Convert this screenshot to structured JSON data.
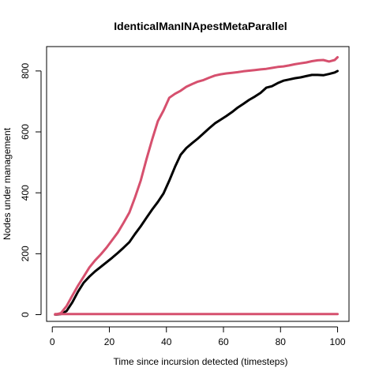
{
  "chart_data": {
    "type": "line",
    "title": "IdenticalManINApestMetaParallel",
    "xlabel": "Time since incursion detected (timesteps)",
    "ylabel": "Nodes under management",
    "xlim": [
      -2,
      104
    ],
    "ylim": [
      -22,
      880
    ],
    "xticks": [
      0,
      20,
      40,
      60,
      80,
      100
    ],
    "yticks": [
      0,
      200,
      400,
      600,
      800
    ],
    "grid": false,
    "series": [
      {
        "color": "#000000",
        "points": [
          [
            1,
            0
          ],
          [
            3,
            2
          ],
          [
            5,
            12
          ],
          [
            7,
            40
          ],
          [
            9,
            75
          ],
          [
            11,
            105
          ],
          [
            13,
            125
          ],
          [
            15,
            142
          ],
          [
            17,
            157
          ],
          [
            19,
            172
          ],
          [
            21,
            187
          ],
          [
            23,
            203
          ],
          [
            25,
            220
          ],
          [
            27,
            238
          ],
          [
            29,
            265
          ],
          [
            31,
            290
          ],
          [
            33,
            318
          ],
          [
            35,
            345
          ],
          [
            37,
            370
          ],
          [
            39,
            398
          ],
          [
            41,
            440
          ],
          [
            43,
            485
          ],
          [
            45,
            525
          ],
          [
            47,
            547
          ],
          [
            49,
            563
          ],
          [
            51,
            578
          ],
          [
            53,
            595
          ],
          [
            55,
            612
          ],
          [
            57,
            628
          ],
          [
            59,
            640
          ],
          [
            61,
            652
          ],
          [
            63,
            665
          ],
          [
            65,
            680
          ],
          [
            67,
            692
          ],
          [
            69,
            705
          ],
          [
            71,
            716
          ],
          [
            73,
            728
          ],
          [
            75,
            745
          ],
          [
            77,
            750
          ],
          [
            79,
            760
          ],
          [
            81,
            768
          ],
          [
            83,
            772
          ],
          [
            85,
            776
          ],
          [
            87,
            779
          ],
          [
            89,
            783
          ],
          [
            91,
            787
          ],
          [
            93,
            787
          ],
          [
            95,
            786
          ],
          [
            97,
            790
          ],
          [
            99,
            795
          ],
          [
            100,
            800
          ]
        ]
      },
      {
        "color": "#d6506e",
        "points": [
          [
            1,
            0
          ],
          [
            3,
            5
          ],
          [
            5,
            28
          ],
          [
            7,
            62
          ],
          [
            9,
            95
          ],
          [
            11,
            125
          ],
          [
            13,
            155
          ],
          [
            15,
            178
          ],
          [
            17,
            198
          ],
          [
            19,
            220
          ],
          [
            21,
            245
          ],
          [
            23,
            270
          ],
          [
            25,
            302
          ],
          [
            27,
            335
          ],
          [
            29,
            385
          ],
          [
            31,
            440
          ],
          [
            33,
            510
          ],
          [
            35,
            575
          ],
          [
            37,
            635
          ],
          [
            39,
            670
          ],
          [
            41,
            712
          ],
          [
            43,
            725
          ],
          [
            45,
            735
          ],
          [
            47,
            748
          ],
          [
            49,
            757
          ],
          [
            51,
            765
          ],
          [
            53,
            770
          ],
          [
            55,
            778
          ],
          [
            57,
            785
          ],
          [
            59,
            789
          ],
          [
            61,
            792
          ],
          [
            63,
            794
          ],
          [
            65,
            796
          ],
          [
            67,
            799
          ],
          [
            69,
            801
          ],
          [
            71,
            803
          ],
          [
            73,
            805
          ],
          [
            75,
            807
          ],
          [
            77,
            810
          ],
          [
            79,
            813
          ],
          [
            81,
            815
          ],
          [
            83,
            818
          ],
          [
            85,
            822
          ],
          [
            87,
            825
          ],
          [
            89,
            828
          ],
          [
            91,
            832
          ],
          [
            93,
            835
          ],
          [
            95,
            836
          ],
          [
            97,
            831
          ],
          [
            99,
            836
          ],
          [
            100,
            845
          ]
        ]
      },
      {
        "color": "#d6506e",
        "points": [
          [
            1,
            2
          ],
          [
            100,
            2
          ]
        ]
      }
    ]
  }
}
